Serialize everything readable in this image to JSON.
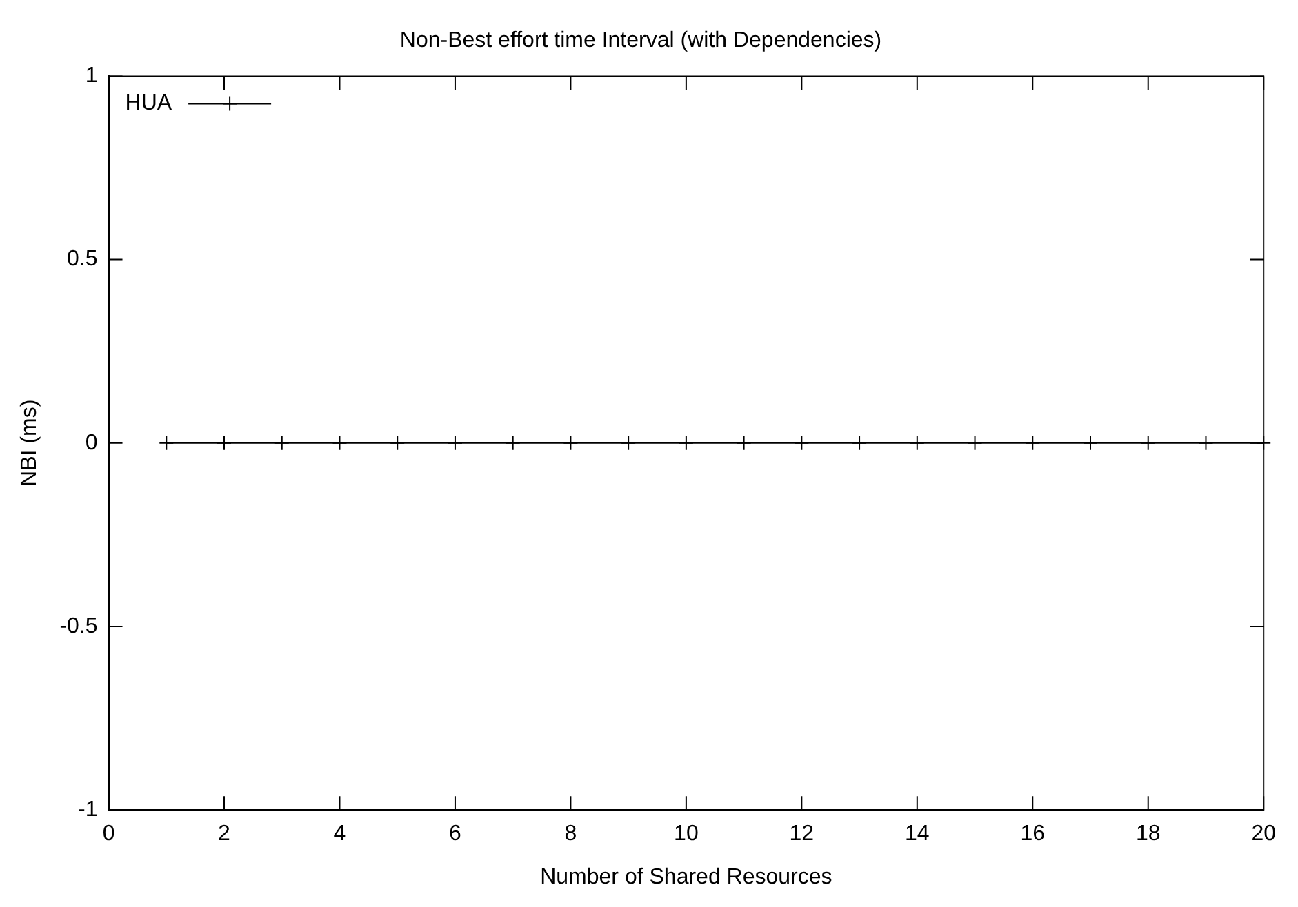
{
  "chart_data": {
    "type": "line",
    "title": "Non-Best effort time Interval (with Dependencies)",
    "xlabel": "Number of Shared Resources",
    "ylabel": "NBI (ms)",
    "x": [
      1,
      2,
      3,
      4,
      5,
      6,
      7,
      8,
      9,
      10,
      11,
      12,
      13,
      14,
      15,
      16,
      17,
      18,
      19,
      20
    ],
    "series": [
      {
        "name": "HUA",
        "color": "#000000",
        "values": [
          0,
          0,
          0,
          0,
          0,
          0,
          0,
          0,
          0,
          0,
          0,
          0,
          0,
          0,
          0,
          0,
          0,
          0,
          0,
          0
        ]
      }
    ],
    "xlim": [
      0,
      20
    ],
    "xticks": [
      0,
      2,
      4,
      6,
      8,
      10,
      12,
      14,
      16,
      18,
      20
    ],
    "ylim": [
      -1,
      1
    ],
    "yticks": [
      -1,
      -0.5,
      0,
      0.5,
      1
    ],
    "grid": false,
    "legend": "top left",
    "marker": "cross",
    "line_style": "solid"
  }
}
